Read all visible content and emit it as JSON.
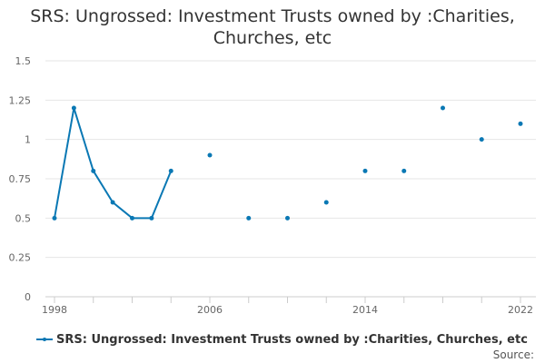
{
  "chart_data": {
    "type": "line",
    "title_lines": [
      "SRS: Ungrossed: Investment Trusts owned by :Charities,",
      "Churches, etc"
    ],
    "xlabel": "",
    "ylabel": "",
    "xlim": [
      1998,
      2022
    ],
    "ylim": [
      0,
      1.5
    ],
    "x_ticks": [
      1998,
      2006,
      2014,
      2022
    ],
    "y_ticks": [
      0,
      0.25,
      0.5,
      0.75,
      1,
      1.25,
      1.5
    ],
    "y_tick_labels": [
      "0",
      "0.25",
      "0.5",
      "0.75",
      "1",
      "1.25",
      "1.5"
    ],
    "grid": "horizontal",
    "legend_position": "bottom",
    "series": [
      {
        "name": "SRS: Ungrossed: Investment Trusts owned by :Charities, Churches, etc",
        "color": "#0a78b4",
        "x": [
          1998,
          1999,
          2000,
          2001,
          2002,
          2003,
          2004,
          2006,
          2008,
          2010,
          2012,
          2014,
          2016,
          2018,
          2020,
          2022
        ],
        "y": [
          0.5,
          1.2,
          0.8,
          0.6,
          0.5,
          0.5,
          0.8,
          0.9,
          0.5,
          0.5,
          0.6,
          0.8,
          0.8,
          1.2,
          1.0,
          1.1
        ]
      }
    ]
  },
  "source_label": "Source:"
}
